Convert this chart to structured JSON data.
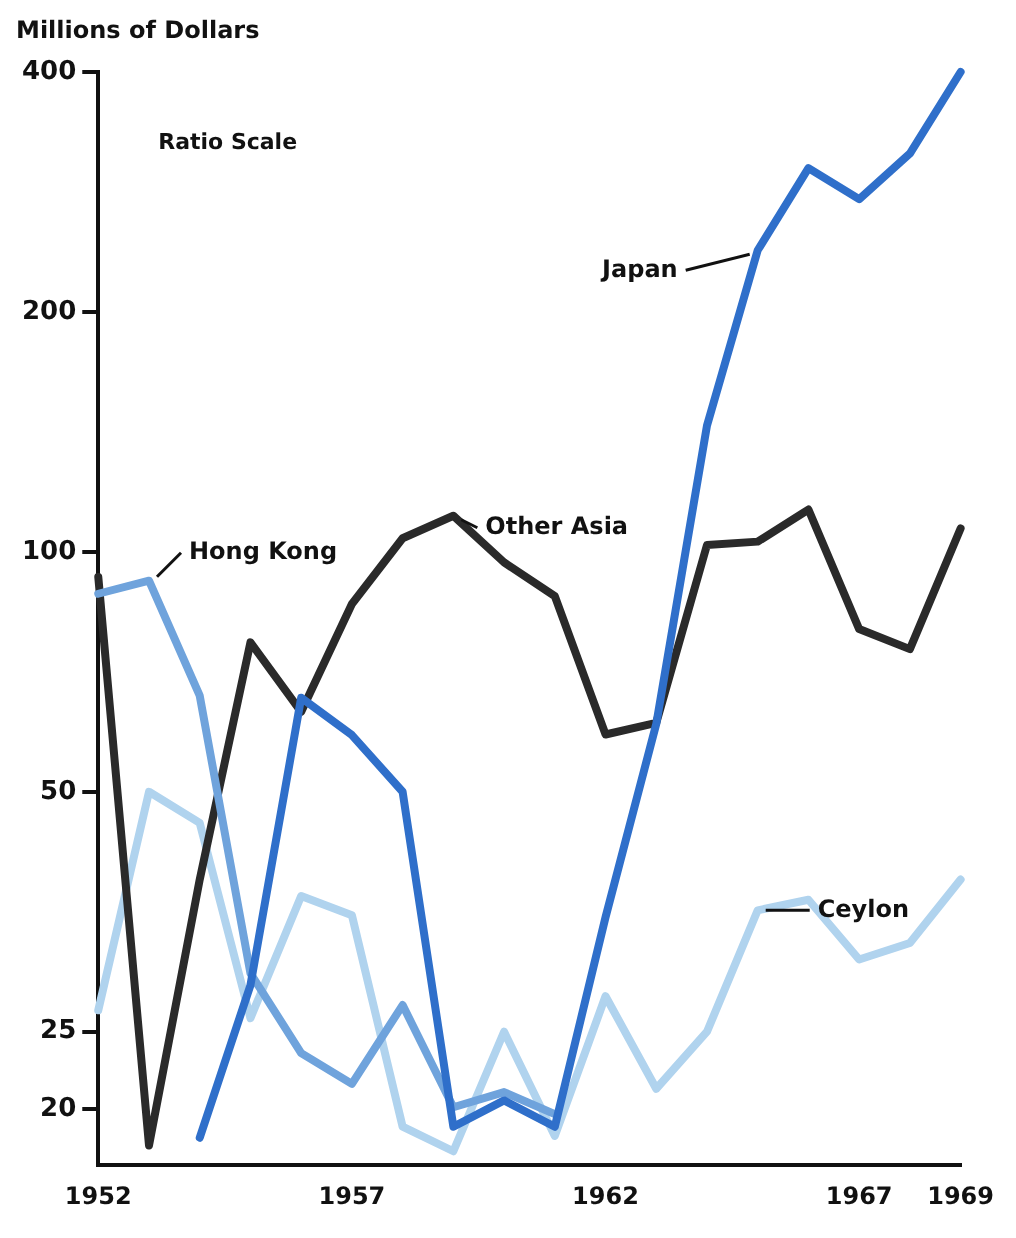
{
  "chart_data": {
    "type": "line",
    "ylabel": "Millions of Dollars",
    "annotations": [
      "Ratio Scale"
    ],
    "x": [
      1952,
      1953,
      1954,
      1955,
      1956,
      1957,
      1958,
      1959,
      1960,
      1961,
      1962,
      1963,
      1964,
      1965,
      1966,
      1967,
      1968,
      1969
    ],
    "series": [
      {
        "name": "Japan",
        "color": "#2f6fca",
        "values": [
          null,
          null,
          18.4,
          28.6,
          65.6,
          58.9,
          50,
          19,
          20.5,
          19,
          34.8,
          60.8,
          144,
          239,
          303,
          277,
          316,
          400
        ]
      },
      {
        "name": "Hong Kong",
        "color": "#6fa3dc",
        "values": [
          88.6,
          92,
          66,
          29.6,
          23.5,
          21.5,
          27,
          20.1,
          21,
          19.7,
          null,
          null,
          null,
          null,
          null,
          null,
          null,
          null
        ]
      },
      {
        "name": "Other Asia",
        "color": "#2a2a2a",
        "values": [
          93,
          18,
          38.8,
          77,
          63,
          86,
          104,
          111,
          97,
          88,
          59,
          61,
          102,
          103,
          113,
          80,
          75.5,
          107
        ]
      },
      {
        "name": "Ceylon",
        "color": "#b0d3ee",
        "values": [
          26.6,
          50,
          45.7,
          26,
          37,
          35,
          19,
          17.7,
          25,
          18.5,
          27.7,
          21.2,
          25,
          35.5,
          36.6,
          30.8,
          32.3,
          38.8
        ]
      }
    ],
    "log": "y",
    "xlim": [
      1952,
      1969
    ],
    "xticks": [
      1952,
      1957,
      1962,
      1967,
      1969
    ],
    "ylim": [
      17,
      400
    ],
    "yticks": [
      20,
      25,
      50,
      100,
      200,
      400
    ],
    "grid": false,
    "legend": false,
    "marker": "none",
    "line_style": "solid"
  }
}
